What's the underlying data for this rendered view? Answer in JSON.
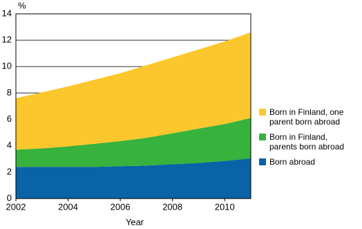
{
  "chart_data": {
    "type": "stacked-area",
    "y_unit": "%",
    "x_label": "Year",
    "x": [
      2002,
      2003,
      2004,
      2005,
      2006,
      2007,
      2008,
      2009,
      2010,
      2011
    ],
    "xlim": [
      2002,
      2011
    ],
    "xticks": [
      2002,
      2004,
      2006,
      2008,
      2010
    ],
    "ylim": [
      0,
      14
    ],
    "yticks": [
      0,
      2,
      4,
      6,
      8,
      10,
      12,
      14
    ],
    "grid": true,
    "legend": "right",
    "series": [
      {
        "name": "Born abroad",
        "color": "#0a63a6",
        "values": [
          2.4,
          2.4,
          2.4,
          2.4,
          2.45,
          2.5,
          2.6,
          2.7,
          2.85,
          3.05
        ]
      },
      {
        "name": "Born in Finland, parents born abroad",
        "color": "#37b23c",
        "values": [
          1.3,
          1.4,
          1.55,
          1.75,
          1.9,
          2.1,
          2.35,
          2.6,
          2.8,
          3.05
        ]
      },
      {
        "name": "Born in Finland, one parent born abroad",
        "color": "#fcc72c",
        "values": [
          3.9,
          4.25,
          4.55,
          4.85,
          5.15,
          5.5,
          5.75,
          6.0,
          6.25,
          6.5
        ]
      }
    ]
  }
}
